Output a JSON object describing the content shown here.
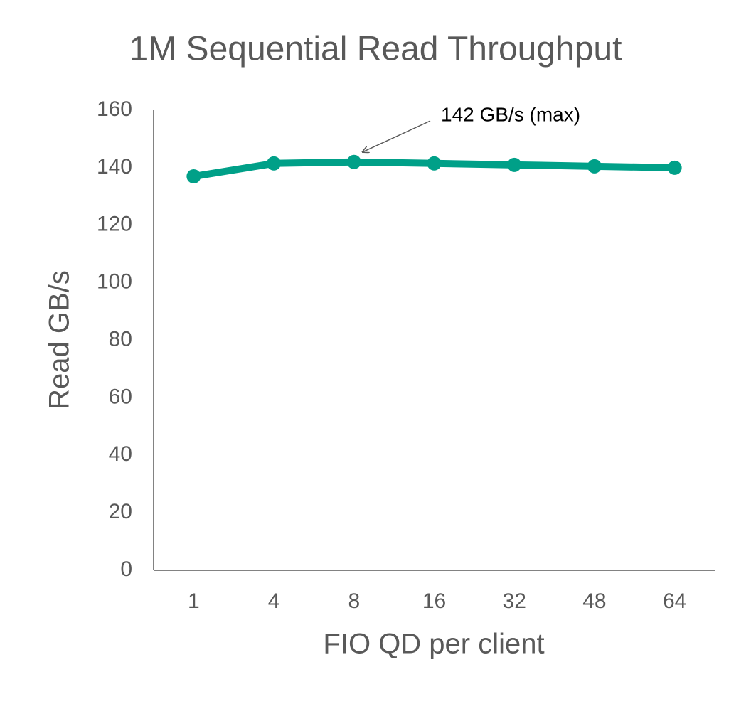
{
  "chart_data": {
    "type": "line",
    "title": "1M Sequential Read Throughput",
    "x_label": "FIO QD per client",
    "y_label": "Read GB/s",
    "categories": [
      "1",
      "4",
      "8",
      "16",
      "32",
      "48",
      "64"
    ],
    "series": [
      {
        "name": "Read GB/s",
        "color": "#00a088",
        "values": [
          137,
          141.5,
          142,
          141.5,
          141,
          140.5,
          140
        ]
      }
    ],
    "ylim": [
      0,
      160
    ],
    "yticks": [
      0,
      20,
      40,
      60,
      80,
      100,
      120,
      140,
      160
    ],
    "annotation": "142 GB/s (max)"
  }
}
